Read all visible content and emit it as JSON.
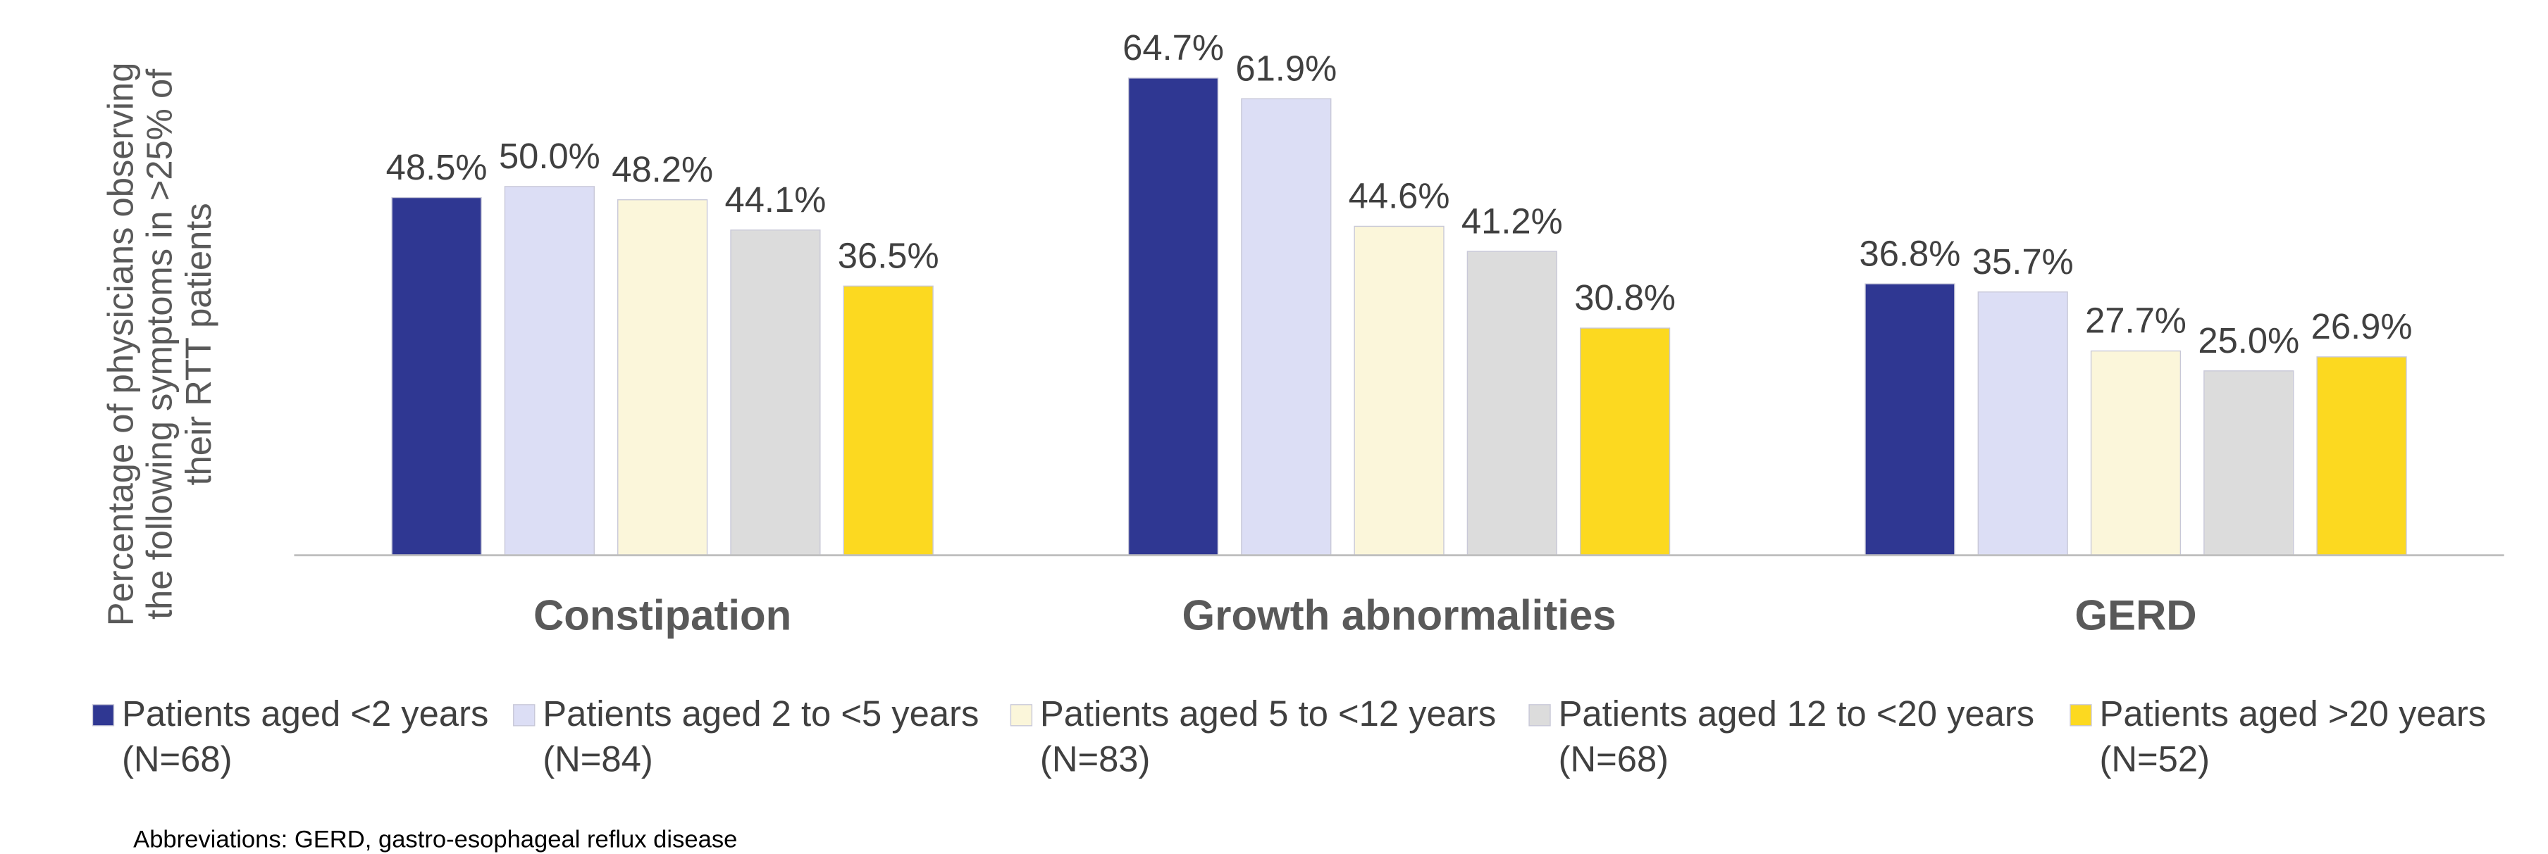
{
  "chart_data": {
    "type": "bar",
    "ylabel": [
      "Percentage of physicians observing",
      "the following symptoms in >25% of",
      "their RTT patients"
    ],
    "categories": [
      "Constipation",
      "Growth abnormalities",
      "GERD"
    ],
    "series": [
      {
        "name": "Patients aged <2 years\n(N=68)",
        "color": "#2f3792",
        "values": [
          48.5,
          64.7,
          36.8
        ],
        "value_labels": [
          "48.5%",
          "64.7%",
          "36.8%"
        ]
      },
      {
        "name": "Patients aged 2 to <5 years\n(N=84)",
        "color": "#dcdef5",
        "values": [
          50.0,
          61.9,
          35.7
        ],
        "value_labels": [
          "50.0%",
          "61.9%",
          "35.7%"
        ]
      },
      {
        "name": "Patients aged 5 to <12 years\n(N=83)",
        "color": "#fbf6da",
        "values": [
          48.2,
          44.6,
          27.7
        ],
        "value_labels": [
          "48.2%",
          "44.6%",
          "27.7%"
        ]
      },
      {
        "name": "Patients aged 12 to <20 years\n(N=68)",
        "color": "#dcdcdc",
        "values": [
          44.1,
          41.2,
          25.0
        ],
        "value_labels": [
          "44.1%",
          "41.2%",
          "25.0%"
        ]
      },
      {
        "name": "Patients aged >20 years\n(N=52)",
        "color": "#fcd920",
        "values": [
          36.5,
          30.8,
          26.9
        ],
        "value_labels": [
          "36.5%",
          "30.8%",
          "26.9%"
        ]
      }
    ],
    "ylim": [
      0,
      70
    ],
    "legend": "bottom",
    "footnote": "Abbreviations: GERD, gastro-esophageal reflux disease"
  }
}
